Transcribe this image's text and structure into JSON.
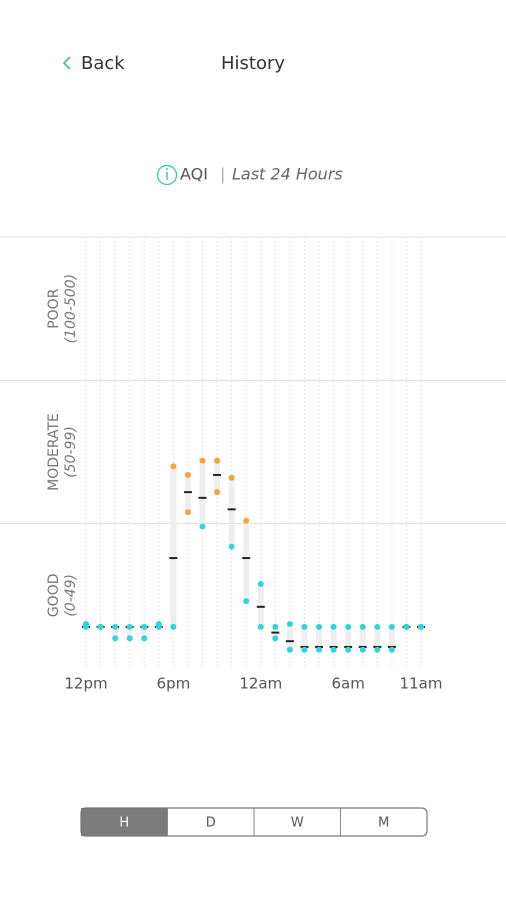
{
  "header": {
    "back": "Back",
    "title": "History"
  },
  "subtitle": {
    "metric": "AQI",
    "separator": "|",
    "period": "Last 24 Hours"
  },
  "chart_data": {
    "type": "range",
    "categories": [
      "12pm",
      null,
      null,
      null,
      null,
      null,
      "6pm",
      null,
      null,
      null,
      null,
      null,
      "12am",
      null,
      null,
      null,
      null,
      null,
      "6am",
      null,
      null,
      null,
      null,
      "11am"
    ],
    "high": [
      15,
      14,
      14,
      14,
      14,
      15,
      70,
      67,
      72,
      72,
      66,
      51,
      29,
      14,
      15,
      14,
      14,
      14,
      14,
      14,
      14,
      14,
      14,
      14
    ],
    "mean": [
      14,
      14,
      14,
      14,
      14,
      14,
      38,
      61,
      59,
      67,
      55,
      38,
      21,
      12,
      9,
      7,
      7,
      7,
      7,
      7,
      7,
      7,
      14,
      14
    ],
    "low": [
      14,
      14,
      10,
      10,
      10,
      14,
      14,
      54,
      49,
      61,
      42,
      23,
      14,
      10,
      6,
      6,
      6,
      6,
      6,
      6,
      6,
      6,
      14,
      14
    ],
    "bands": [
      {
        "name": "GOOD",
        "range": "(0-49)",
        "from": 0,
        "color": "#2fd4dc"
      },
      {
        "name": "MODERATE",
        "range": "(50-99)",
        "from": 50,
        "color": "#f3a43b"
      },
      {
        "name": "POOR",
        "range": "(100-500)",
        "from": 100,
        "to": 500,
        "color": "#e8553e"
      }
    ]
  },
  "tabs": {
    "options": [
      "H",
      "D",
      "W",
      "M"
    ],
    "selected": 0
  }
}
